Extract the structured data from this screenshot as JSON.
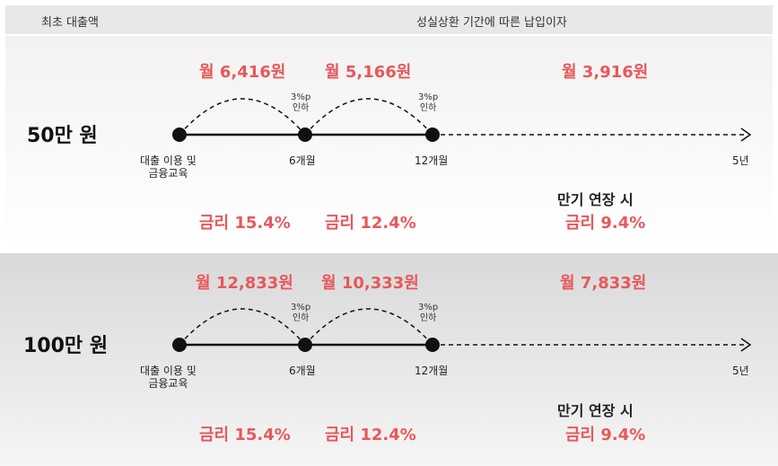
{
  "header": {
    "left": "최초 대출액",
    "right": "성실상환 기간에 따른 납입이자"
  },
  "sections": [
    {
      "loan": "50만 원",
      "payments": [
        "월 6,416원",
        "월 5,166원",
        "월 3,916원"
      ],
      "cut_labels": [
        "3%p\n인하",
        "3%p\n인하"
      ],
      "points": [
        "대출 이용 및\n금융교육",
        "6개월",
        "12개월",
        "5년"
      ],
      "rates": [
        "금리 15.4%",
        "금리 12.4%",
        "금리 9.4%"
      ],
      "extension": "만기 연장 시"
    },
    {
      "loan": "100만 원",
      "payments": [
        "월 12,833원",
        "월 10,333원",
        "월 7,833원"
      ],
      "cut_labels": [
        "3%p\n인하",
        "3%p\n인하"
      ],
      "points": [
        "대출 이용 및\n금융교육",
        "6개월",
        "12개월",
        "5년"
      ],
      "rates": [
        "금리 15.4%",
        "금리 12.4%",
        "금리 9.4%"
      ],
      "extension": "만기 연장 시"
    }
  ],
  "colors": {
    "accent": "#e8585a",
    "line": "#111111"
  }
}
